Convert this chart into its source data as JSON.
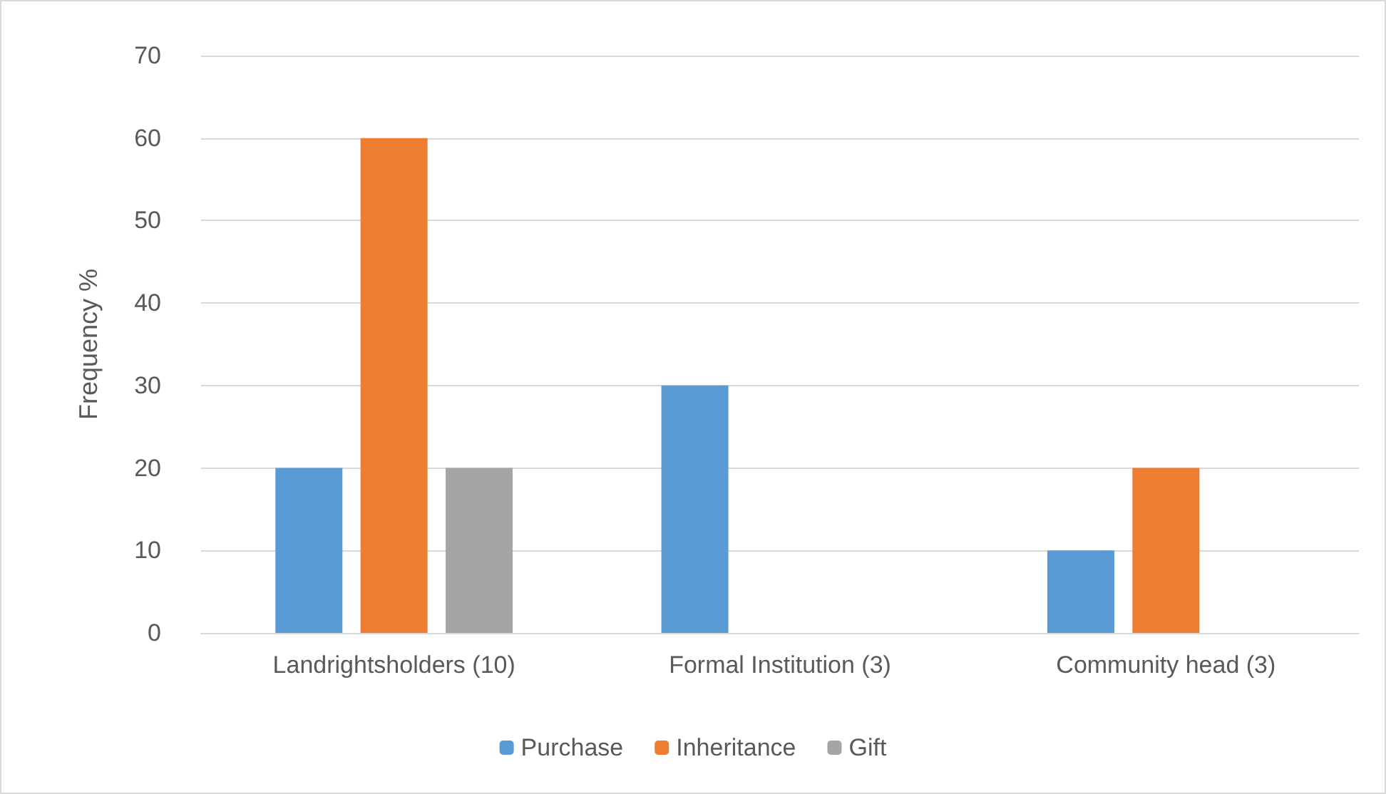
{
  "chart_data": {
    "type": "bar",
    "ylabel": "Frequency %",
    "categories": [
      "Landrightsholders (10)",
      "Formal Institution (3)",
      "Community head (3)"
    ],
    "series": [
      {
        "name": "Purchase",
        "color": "#5b9bd5",
        "values": [
          20,
          30,
          10
        ]
      },
      {
        "name": "Inheritance",
        "color": "#ed7d31",
        "values": [
          60,
          0,
          20
        ]
      },
      {
        "name": "Gift",
        "color": "#a5a5a5",
        "values": [
          20,
          0,
          0
        ]
      }
    ],
    "ylim": [
      0,
      70
    ],
    "yticks": [
      0,
      10,
      20,
      30,
      40,
      50,
      60,
      70
    ],
    "grid": "y",
    "legend": "bottom"
  }
}
